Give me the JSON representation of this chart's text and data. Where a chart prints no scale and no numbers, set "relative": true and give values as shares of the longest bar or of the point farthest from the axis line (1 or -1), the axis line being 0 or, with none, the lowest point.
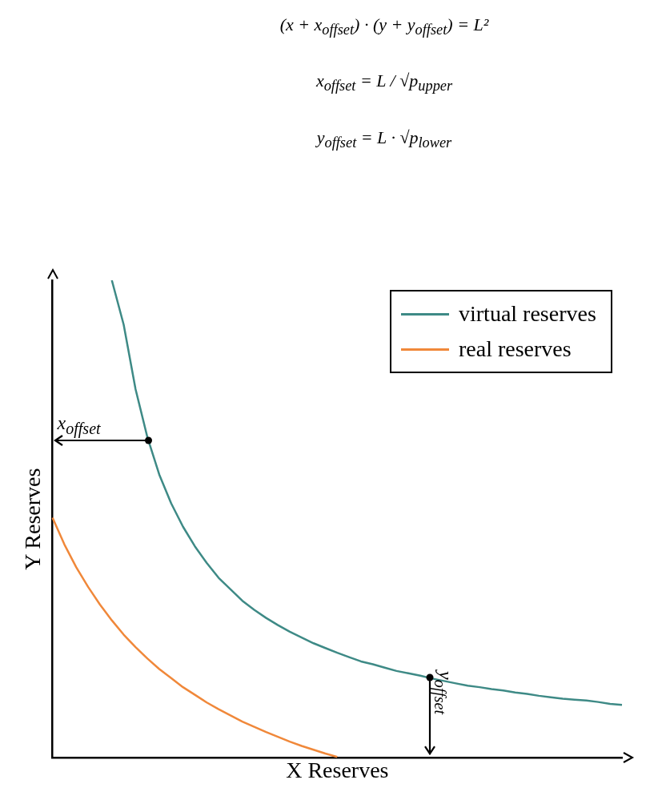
{
  "chart_data": {
    "type": "line",
    "relative": true,
    "xlabel": "X Reserves",
    "ylabel": "Y Reserves",
    "categories": [
      null,
      null,
      null,
      null,
      null,
      null,
      null,
      null,
      null,
      null,
      null,
      null,
      null,
      null,
      null,
      null,
      null,
      null,
      null,
      null,
      null,
      null,
      null,
      null,
      null,
      null,
      null,
      null,
      null,
      null,
      null,
      null,
      null,
      null,
      null,
      null,
      null,
      null,
      null,
      null,
      null,
      null,
      null,
      null,
      null,
      null,
      null,
      null,
      null
    ],
    "series": [
      {
        "name": "virtual reserves",
        "color": "#3e8a86",
        "values": [
          null,
          null,
          null,
          null,
          null,
          1,
          0.907,
          0.772,
          0.671,
          0.593,
          0.533,
          0.484,
          0.443,
          0.408,
          0.377,
          0.353,
          0.329,
          0.31,
          0.293,
          0.278,
          0.264,
          0.252,
          0.24,
          0.23,
          0.22,
          0.211,
          0.202,
          0.196,
          0.189,
          0.182,
          0.177,
          0.172,
          0.166,
          0.161,
          0.156,
          0.151,
          0.148,
          0.144,
          0.141,
          0.137,
          0.134,
          0.13,
          0.127,
          0.124,
          0.122,
          0.12,
          0.117,
          0.113,
          0.111
        ]
      },
      {
        "name": "real reserves",
        "color": "#f0883a",
        "values": [
          0.503,
          0.447,
          0.399,
          0.358,
          0.321,
          0.288,
          0.258,
          0.232,
          0.208,
          0.186,
          0.167,
          0.148,
          0.132,
          0.116,
          0.102,
          0.089,
          0.076,
          0.065,
          0.054,
          0.044,
          0.034,
          0.025,
          0.017,
          0.009,
          0.002,
          null,
          null,
          null,
          null,
          null,
          null,
          null,
          null,
          null,
          null,
          null,
          null,
          null,
          null,
          null,
          null,
          null,
          null,
          null,
          null,
          null,
          null,
          null,
          null
        ]
      }
    ],
    "annotations": [
      "(x + x$_{offset}$) · (y + y$_{offset}$) = L²",
      "x$_{offset}$ = L / √p$_{upper}$",
      "y$_{offset}$ = L · √p$_{lower}$",
      "x$_{offset}$",
      "y$_{offset}$"
    ],
    "legend": "top right",
    "marker": "none",
    "line_style": "solid",
    "grid": false
  }
}
